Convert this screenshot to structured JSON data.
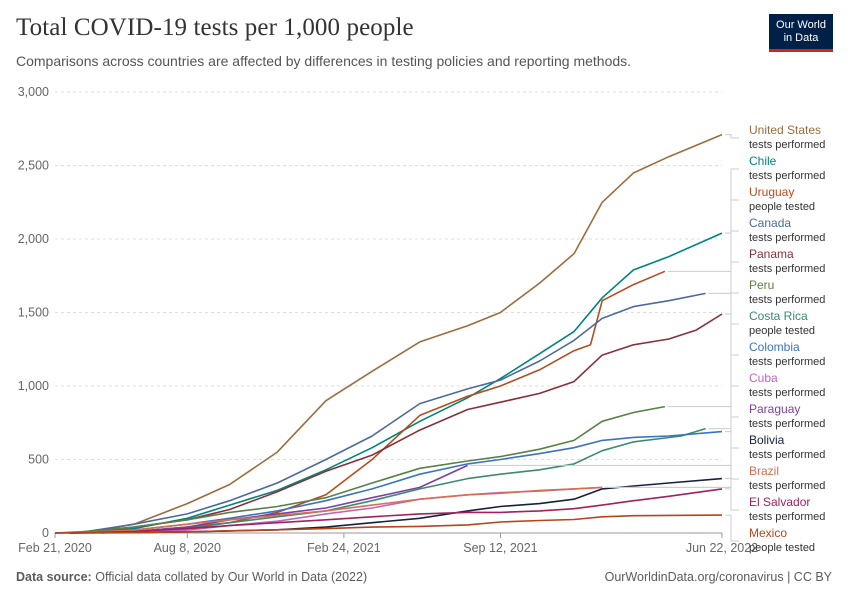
{
  "header": {
    "title": "Total COVID-19 tests per 1,000 people",
    "subtitle": "Comparisons across countries are affected by differences in testing policies and reporting methods.",
    "logo_line1": "Our World",
    "logo_line2": "in Data"
  },
  "footer": {
    "source_label": "Data source:",
    "source_text": "Official data collated by Our World in Data (2022)",
    "right_text": "OurWorldinData.org/coronavirus | CC BY"
  },
  "colors": {
    "logo_bg": "#002147",
    "logo_accent": "#ce261e",
    "grid": "#dddddd"
  },
  "chart_data": {
    "type": "line",
    "title": "Total COVID-19 tests per 1,000 people",
    "ylim": [
      0,
      3000
    ],
    "y_ticks": [
      0,
      500,
      1000,
      1500,
      2000,
      2500,
      3000
    ],
    "y_tick_labels": [
      "0",
      "500",
      "1,000",
      "1,500",
      "2,000",
      "2,500",
      "3,000"
    ],
    "xlim": [
      "2020-02-21",
      "2022-06-22"
    ],
    "x_ticks": [
      "2020-02-21",
      "2020-08-08",
      "2021-02-24",
      "2021-09-12",
      "2022-06-22"
    ],
    "x_tick_labels": [
      "Feb 21, 2020",
      "Aug 8, 2020",
      "Feb 24, 2021",
      "Sep 12, 2021",
      "Jun 22, 2022"
    ],
    "grid": "horizontal dashed",
    "legend": "right",
    "series": [
      {
        "name": "United States",
        "metric": "tests performed",
        "color": "#9a6d3d",
        "points": [
          [
            "2020-02-21",
            0
          ],
          [
            "2020-04-01",
            5
          ],
          [
            "2020-06-01",
            60
          ],
          [
            "2020-08-08",
            200
          ],
          [
            "2020-10-01",
            330
          ],
          [
            "2020-12-01",
            550
          ],
          [
            "2021-02-01",
            900
          ],
          [
            "2021-04-01",
            1100
          ],
          [
            "2021-06-01",
            1300
          ],
          [
            "2021-08-01",
            1410
          ],
          [
            "2021-09-12",
            1500
          ],
          [
            "2021-11-01",
            1700
          ],
          [
            "2021-12-15",
            1900
          ],
          [
            "2022-01-20",
            2250
          ],
          [
            "2022-03-01",
            2450
          ],
          [
            "2022-04-15",
            2560
          ],
          [
            "2022-06-22",
            2710
          ]
        ]
      },
      {
        "name": "Chile",
        "metric": "tests performed",
        "color": "#00847e",
        "points": [
          [
            "2020-02-21",
            0
          ],
          [
            "2020-04-01",
            3
          ],
          [
            "2020-06-01",
            30
          ],
          [
            "2020-08-08",
            100
          ],
          [
            "2020-10-01",
            190
          ],
          [
            "2020-12-01",
            290
          ],
          [
            "2021-02-01",
            430
          ],
          [
            "2021-04-01",
            580
          ],
          [
            "2021-06-01",
            760
          ],
          [
            "2021-08-01",
            920
          ],
          [
            "2021-09-12",
            1050
          ],
          [
            "2021-11-01",
            1220
          ],
          [
            "2021-12-15",
            1370
          ],
          [
            "2022-01-20",
            1600
          ],
          [
            "2022-03-01",
            1790
          ],
          [
            "2022-04-15",
            1880
          ],
          [
            "2022-06-22",
            2040
          ]
        ]
      },
      {
        "name": "Uruguay",
        "metric": "people tested",
        "color": "#b34d22",
        "points": [
          [
            "2020-04-20",
            0
          ],
          [
            "2020-06-01",
            10
          ],
          [
            "2020-08-08",
            40
          ],
          [
            "2020-10-01",
            70
          ],
          [
            "2020-12-01",
            140
          ],
          [
            "2021-02-01",
            260
          ],
          [
            "2021-04-01",
            500
          ],
          [
            "2021-06-01",
            800
          ],
          [
            "2021-08-01",
            930
          ],
          [
            "2021-09-12",
            1000
          ],
          [
            "2021-11-01",
            1110
          ],
          [
            "2021-12-15",
            1240
          ],
          [
            "2022-01-05",
            1280
          ],
          [
            "2022-01-20",
            1580
          ],
          [
            "2022-03-01",
            1690
          ],
          [
            "2022-04-10",
            1780
          ]
        ]
      },
      {
        "name": "Canada",
        "metric": "tests performed",
        "color": "#4c6a9c",
        "points": [
          [
            "2020-02-21",
            0
          ],
          [
            "2020-04-01",
            10
          ],
          [
            "2020-06-01",
            60
          ],
          [
            "2020-08-08",
            130
          ],
          [
            "2020-10-01",
            220
          ],
          [
            "2020-12-01",
            340
          ],
          [
            "2021-02-01",
            500
          ],
          [
            "2021-04-01",
            660
          ],
          [
            "2021-06-01",
            880
          ],
          [
            "2021-08-01",
            980
          ],
          [
            "2021-09-12",
            1040
          ],
          [
            "2021-11-01",
            1170
          ],
          [
            "2021-12-15",
            1310
          ],
          [
            "2022-01-20",
            1460
          ],
          [
            "2022-03-01",
            1540
          ],
          [
            "2022-04-15",
            1580
          ],
          [
            "2022-06-01",
            1630
          ]
        ]
      },
      {
        "name": "Panama",
        "metric": "tests performed",
        "color": "#883039",
        "points": [
          [
            "2020-03-10",
            0
          ],
          [
            "2020-06-01",
            40
          ],
          [
            "2020-08-08",
            90
          ],
          [
            "2020-10-01",
            160
          ],
          [
            "2020-12-01",
            280
          ],
          [
            "2021-02-01",
            420
          ],
          [
            "2021-04-01",
            530
          ],
          [
            "2021-06-01",
            700
          ],
          [
            "2021-08-01",
            840
          ],
          [
            "2021-09-12",
            890
          ],
          [
            "2021-11-01",
            950
          ],
          [
            "2021-12-15",
            1030
          ],
          [
            "2022-01-20",
            1210
          ],
          [
            "2022-03-01",
            1280
          ],
          [
            "2022-04-15",
            1320
          ],
          [
            "2022-05-20",
            1380
          ],
          [
            "2022-06-22",
            1490
          ]
        ]
      },
      {
        "name": "Peru",
        "metric": "tests performed",
        "color": "#578145",
        "points": [
          [
            "2020-03-10",
            0
          ],
          [
            "2020-06-01",
            40
          ],
          [
            "2020-08-08",
            90
          ],
          [
            "2020-10-01",
            140
          ],
          [
            "2020-12-01",
            180
          ],
          [
            "2021-02-01",
            240
          ],
          [
            "2021-04-01",
            340
          ],
          [
            "2021-06-01",
            440
          ],
          [
            "2021-08-01",
            490
          ],
          [
            "2021-09-12",
            520
          ],
          [
            "2021-11-01",
            570
          ],
          [
            "2021-12-15",
            630
          ],
          [
            "2022-01-20",
            760
          ],
          [
            "2022-03-01",
            820
          ],
          [
            "2022-04-10",
            860
          ]
        ]
      },
      {
        "name": "Costa Rica",
        "metric": "people tested",
        "color": "#3c8b6f",
        "points": [
          [
            "2020-03-10",
            0
          ],
          [
            "2020-06-01",
            10
          ],
          [
            "2020-08-08",
            30
          ],
          [
            "2020-10-01",
            70
          ],
          [
            "2020-12-01",
            110
          ],
          [
            "2021-02-01",
            150
          ],
          [
            "2021-04-01",
            220
          ],
          [
            "2021-06-01",
            300
          ],
          [
            "2021-08-01",
            370
          ],
          [
            "2021-09-12",
            400
          ],
          [
            "2021-11-01",
            430
          ],
          [
            "2021-12-15",
            470
          ],
          [
            "2022-01-20",
            560
          ],
          [
            "2022-03-01",
            620
          ],
          [
            "2022-05-01",
            660
          ],
          [
            "2022-06-01",
            710
          ]
        ]
      },
      {
        "name": "Colombia",
        "metric": "tests performed",
        "color": "#3b72c4",
        "points": [
          [
            "2020-03-10",
            0
          ],
          [
            "2020-06-01",
            20
          ],
          [
            "2020-08-08",
            60
          ],
          [
            "2020-10-01",
            100
          ],
          [
            "2020-12-01",
            150
          ],
          [
            "2021-02-01",
            220
          ],
          [
            "2021-04-01",
            300
          ],
          [
            "2021-06-01",
            400
          ],
          [
            "2021-08-01",
            470
          ],
          [
            "2021-09-12",
            500
          ],
          [
            "2021-11-01",
            540
          ],
          [
            "2021-12-15",
            580
          ],
          [
            "2022-01-20",
            630
          ],
          [
            "2022-03-01",
            650
          ],
          [
            "2022-04-15",
            660
          ],
          [
            "2022-06-22",
            690
          ]
        ]
      },
      {
        "name": "Cuba",
        "metric": "tests performed",
        "color": "#c066c0",
        "points": [
          [
            "2020-03-10",
            0
          ],
          [
            "2020-06-01",
            5
          ],
          [
            "2020-08-08",
            20
          ],
          [
            "2020-10-01",
            50
          ],
          [
            "2020-12-01",
            80
          ],
          [
            "2021-02-01",
            130
          ],
          [
            "2021-04-01",
            170
          ],
          [
            "2021-06-01",
            230
          ],
          [
            "2021-08-01",
            260
          ],
          [
            "2021-09-12",
            275
          ],
          [
            "2021-11-01",
            285
          ],
          [
            "2021-12-15",
            300
          ],
          [
            "2022-01-20",
            310
          ]
        ]
      },
      {
        "name": "Paraguay",
        "metric": "tests performed",
        "color": "#7c40a2",
        "points": [
          [
            "2020-03-10",
            0
          ],
          [
            "2020-06-01",
            10
          ],
          [
            "2020-08-08",
            40
          ],
          [
            "2020-10-01",
            90
          ],
          [
            "2020-12-01",
            130
          ],
          [
            "2021-02-01",
            170
          ],
          [
            "2021-04-01",
            240
          ],
          [
            "2021-06-01",
            310
          ],
          [
            "2021-08-01",
            460
          ]
        ]
      },
      {
        "name": "Bolivia",
        "metric": "tests performed",
        "color": "#16223b",
        "points": [
          [
            "2020-03-10",
            0
          ],
          [
            "2020-06-01",
            3
          ],
          [
            "2020-08-08",
            8
          ],
          [
            "2020-10-01",
            14
          ],
          [
            "2020-12-01",
            22
          ],
          [
            "2021-02-01",
            40
          ],
          [
            "2021-04-01",
            70
          ],
          [
            "2021-06-01",
            100
          ],
          [
            "2021-08-01",
            150
          ],
          [
            "2021-09-12",
            180
          ],
          [
            "2021-11-01",
            200
          ],
          [
            "2021-12-15",
            230
          ],
          [
            "2022-01-20",
            300
          ],
          [
            "2022-03-01",
            320
          ],
          [
            "2022-04-15",
            340
          ],
          [
            "2022-06-22",
            370
          ]
        ]
      },
      {
        "name": "Brazil",
        "metric": "tests performed",
        "color": "#d76e52",
        "points": [
          [
            "2020-03-10",
            0
          ],
          [
            "2020-06-01",
            20
          ],
          [
            "2020-08-08",
            60
          ],
          [
            "2020-10-01",
            90
          ],
          [
            "2020-12-01",
            120
          ],
          [
            "2021-02-01",
            150
          ],
          [
            "2021-04-01",
            190
          ],
          [
            "2021-06-01",
            230
          ],
          [
            "2021-08-01",
            260
          ],
          [
            "2021-09-12",
            270
          ],
          [
            "2021-11-01",
            290
          ],
          [
            "2021-12-15",
            300
          ],
          [
            "2022-01-20",
            310
          ]
        ]
      },
      {
        "name": "El Salvador",
        "metric": "tests performed",
        "color": "#a2215a",
        "points": [
          [
            "2020-03-10",
            0
          ],
          [
            "2020-06-01",
            10
          ],
          [
            "2020-08-08",
            30
          ],
          [
            "2020-10-01",
            50
          ],
          [
            "2020-12-01",
            70
          ],
          [
            "2021-02-01",
            90
          ],
          [
            "2021-04-01",
            110
          ],
          [
            "2021-06-01",
            130
          ],
          [
            "2021-08-01",
            140
          ],
          [
            "2021-09-12",
            140
          ],
          [
            "2021-11-01",
            150
          ],
          [
            "2021-12-15",
            165
          ],
          [
            "2022-01-20",
            190
          ],
          [
            "2022-03-01",
            220
          ],
          [
            "2022-04-15",
            250
          ],
          [
            "2022-06-22",
            300
          ]
        ]
      },
      {
        "name": "Mexico",
        "metric": "people tested",
        "color": "#b5451a",
        "points": [
          [
            "2020-02-21",
            0
          ],
          [
            "2020-06-01",
            3
          ],
          [
            "2020-08-08",
            8
          ],
          [
            "2020-10-01",
            15
          ],
          [
            "2020-12-01",
            22
          ],
          [
            "2021-02-01",
            30
          ],
          [
            "2021-04-01",
            40
          ],
          [
            "2021-06-01",
            45
          ],
          [
            "2021-08-01",
            55
          ],
          [
            "2021-09-12",
            75
          ],
          [
            "2021-11-01",
            85
          ],
          [
            "2021-12-15",
            92
          ],
          [
            "2022-01-20",
            110
          ],
          [
            "2022-03-01",
            118
          ],
          [
            "2022-04-15",
            120
          ],
          [
            "2022-06-22",
            122
          ]
        ]
      }
    ]
  }
}
